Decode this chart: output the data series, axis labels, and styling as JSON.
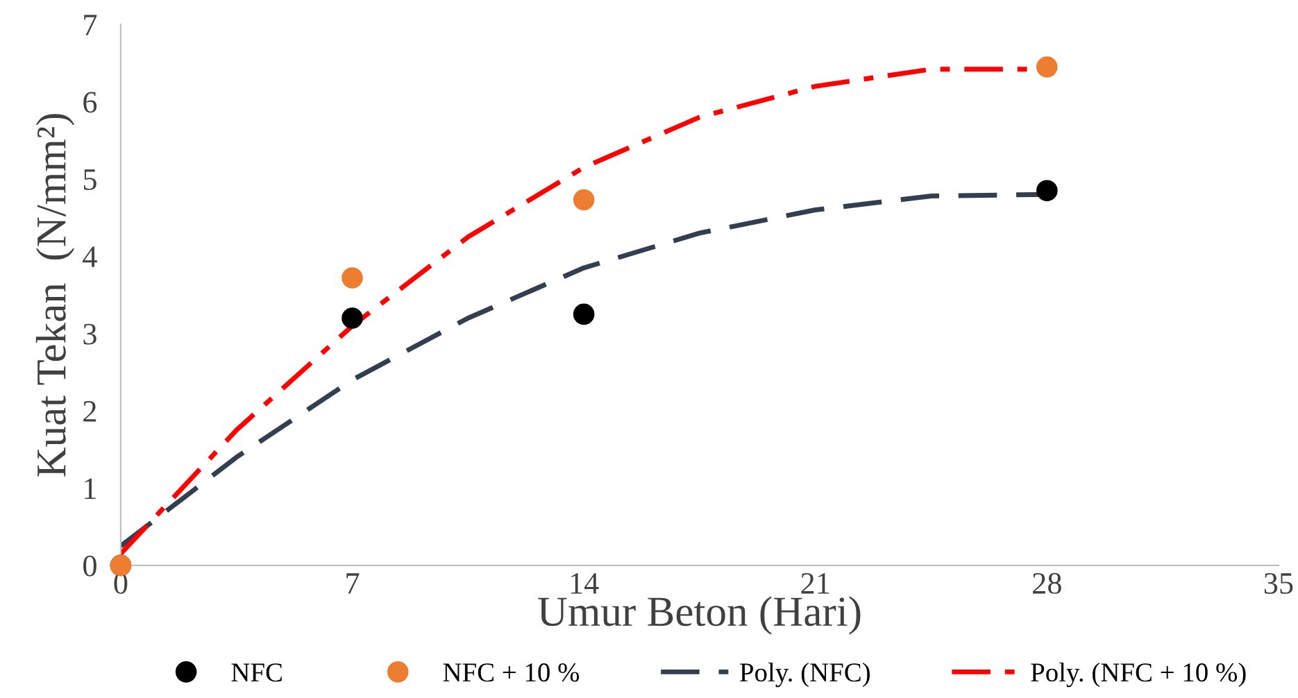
{
  "chart_data": {
    "type": "scatter",
    "xlabel": "Umur Beton (Hari)",
    "ylabel": "Kuat Tekan  (N/mm²)",
    "xlim": [
      0,
      35
    ],
    "xticks": [
      0,
      7,
      14,
      21,
      28,
      35
    ],
    "ylim": [
      0,
      7
    ],
    "yticks": [
      0,
      1,
      2,
      3,
      4,
      5,
      6,
      7
    ],
    "grid": false,
    "legend": "bottom",
    "series": [
      {
        "name": "NFC",
        "color": "#000000",
        "marker": "circle",
        "x": [
          0,
          7,
          14,
          28
        ],
        "values": [
          0,
          3.2,
          3.25,
          4.85
        ]
      },
      {
        "name": "NFC + 10 %",
        "color": "#ed7d31",
        "marker": "circle",
        "x": [
          0,
          7,
          14,
          28
        ],
        "values": [
          0,
          3.72,
          4.73,
          6.45
        ]
      },
      {
        "name": "Poly. (NFC)",
        "type": "line",
        "line_style": "dashed",
        "marker": "none",
        "color": "#333f50",
        "x": [
          0,
          3.5,
          7,
          10.5,
          14,
          17.5,
          21,
          24.5,
          28
        ],
        "values": [
          0.25,
          1.4,
          2.4,
          3.2,
          3.85,
          4.3,
          4.6,
          4.78,
          4.8
        ]
      },
      {
        "name": "Poly. (NFC + 10 %)",
        "type": "line",
        "line_style": "dashdot",
        "marker": "none",
        "color": "#ff0000",
        "x": [
          0,
          3.5,
          7,
          10.5,
          14,
          17.5,
          21,
          24.5,
          28
        ],
        "values": [
          0.15,
          1.75,
          3.1,
          4.25,
          5.15,
          5.8,
          6.2,
          6.42,
          6.42
        ]
      }
    ]
  }
}
